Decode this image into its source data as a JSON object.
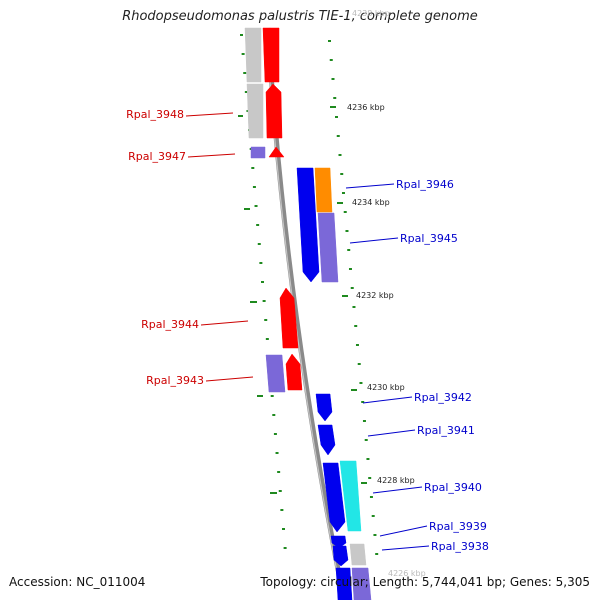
{
  "title": "Rhodopseudomonas palustris TIE-1, complete genome",
  "footer": {
    "accession": "Accession: NC_011004",
    "topology": "Topology: circular; Length: 5,744,041 bp; Genes: 5,305"
  },
  "colors": {
    "forward_gene": "#ff0000",
    "reverse_gene": "#0000ee",
    "rna_or_other": "#ff8c00",
    "cyan_feature": "#22e6e6",
    "cds_forward": "#c8c8c8",
    "cds_reverse": "#7b68d8",
    "tick": "#1f8a1f",
    "backbone": "#8a8a8a",
    "forward_label": "#cc0000",
    "reverse_label": "#0000cc"
  },
  "scale_labels": [
    {
      "kbp": 4238,
      "text": "4238 kbp"
    },
    {
      "kbp": 4236,
      "text": "4236 kbp"
    },
    {
      "kbp": 4234,
      "text": "4234 kbp"
    },
    {
      "kbp": 4232,
      "text": "4232 kbp"
    },
    {
      "kbp": 4230,
      "text": "4230 kbp"
    },
    {
      "kbp": 4228,
      "text": "4228 kbp"
    },
    {
      "kbp": 4226,
      "text": "4226 kbp"
    }
  ],
  "genes": [
    {
      "label": "Rpal_3948",
      "strand": "forward"
    },
    {
      "label": "Rpal_3947",
      "strand": "forward"
    },
    {
      "label": "Rpal_3946",
      "strand": "reverse"
    },
    {
      "label": "Rpal_3945",
      "strand": "reverse"
    },
    {
      "label": "Rpal_3944",
      "strand": "forward"
    },
    {
      "label": "Rpal_3943",
      "strand": "forward"
    },
    {
      "label": "Rpal_3942",
      "strand": "reverse"
    },
    {
      "label": "Rpal_3941",
      "strand": "reverse"
    },
    {
      "label": "Rpal_3940",
      "strand": "reverse"
    },
    {
      "label": "Rpal_3939",
      "strand": "reverse"
    },
    {
      "label": "Rpal_3938",
      "strand": "reverse"
    }
  ]
}
